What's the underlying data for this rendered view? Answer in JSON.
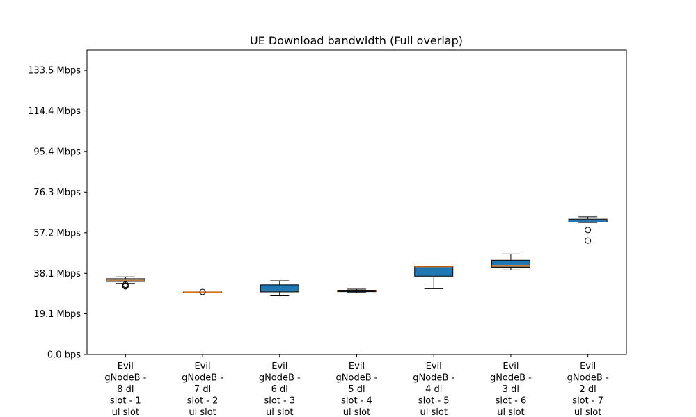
{
  "chart_data": {
    "type": "boxplot",
    "title": "UE Download bandwidth (Full overlap)",
    "xlabel": "",
    "ylabel": "",
    "ylim": [
      0,
      143
    ],
    "y_unit": "Mbps",
    "y_ticks": [
      {
        "value": 0,
        "label": "0.0 bps"
      },
      {
        "value": 19.1,
        "label": "19.1 Mbps"
      },
      {
        "value": 38.1,
        "label": "38.1 Mbps"
      },
      {
        "value": 57.2,
        "label": "57.2 Mbps"
      },
      {
        "value": 76.3,
        "label": "76.3 Mbps"
      },
      {
        "value": 95.4,
        "label": "95.4 Mbps"
      },
      {
        "value": 114.4,
        "label": "114.4 Mbps"
      },
      {
        "value": 133.5,
        "label": "133.5 Mbps"
      }
    ],
    "categories": [
      [
        "Evil",
        "gNodeB -",
        "8 dl",
        "slot - 1",
        "ul slot"
      ],
      [
        "Evil",
        "gNodeB -",
        "7 dl",
        "slot - 2",
        "ul slot"
      ],
      [
        "Evil",
        "gNodeB -",
        "6 dl",
        "slot - 3",
        "ul slot"
      ],
      [
        "Evil",
        "gNodeB -",
        "5 dl",
        "slot - 4",
        "ul slot"
      ],
      [
        "Evil",
        "gNodeB -",
        "4 dl",
        "slot - 5",
        "ul slot"
      ],
      [
        "Evil",
        "gNodeB -",
        "3 dl",
        "slot - 6",
        "ul slot"
      ],
      [
        "Evil",
        "gNodeB -",
        "2 dl",
        "slot - 7",
        "ul slot"
      ]
    ],
    "boxes": [
      {
        "whisker_low": 33.4,
        "q1": 34.3,
        "median": 34.9,
        "q3": 35.6,
        "whisker_high": 36.5,
        "outliers": [
          32.8,
          32.3,
          32.0
        ]
      },
      {
        "whisker_low": 29.3,
        "q1": 29.3,
        "median": 29.3,
        "q3": 29.4,
        "whisker_high": 29.4,
        "outliers": [
          29.4
        ]
      },
      {
        "whisker_low": 27.6,
        "q1": 29.4,
        "median": 29.9,
        "q3": 32.7,
        "whisker_high": 34.6,
        "outliers": []
      },
      {
        "whisker_low": 29.1,
        "q1": 29.5,
        "median": 29.9,
        "q3": 30.2,
        "whisker_high": 30.7,
        "outliers": []
      },
      {
        "whisker_low": 30.9,
        "q1": 36.8,
        "median": 41.2,
        "q3": 41.3,
        "whisker_high": 41.3,
        "outliers": []
      },
      {
        "whisker_low": 39.7,
        "q1": 41.0,
        "median": 41.5,
        "q3": 44.3,
        "whisker_high": 47.2,
        "outliers": []
      },
      {
        "whisker_low": 62.0,
        "q1": 62.2,
        "median": 63.2,
        "q3": 63.6,
        "whisker_high": 64.7,
        "outliers": [
          58.5,
          53.5
        ]
      }
    ],
    "colors": {
      "box": "#1f77b4",
      "median": "#ff7f0e",
      "line": "#000000"
    },
    "grid": false,
    "legend": "none"
  }
}
